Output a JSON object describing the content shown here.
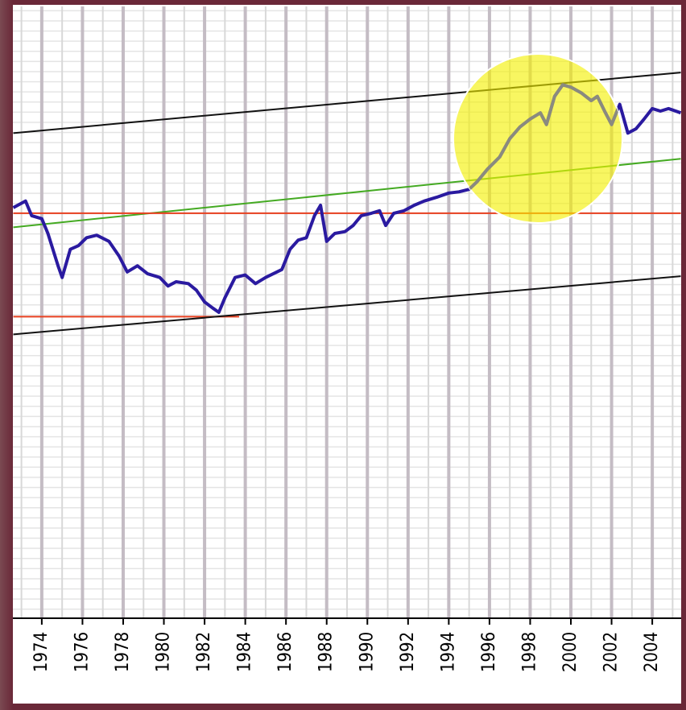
{
  "chart_data": {
    "type": "line",
    "x": [
      1972.6,
      1973.2,
      1973.5,
      1974,
      1974.3,
      1974.8,
      1975,
      1975.4,
      1975.8,
      1976.2,
      1976.7,
      1977.3,
      1977.8,
      1978.2,
      1978.7,
      1979.2,
      1979.8,
      1980.2,
      1980.6,
      1981.2,
      1981.6,
      1982,
      1982.4,
      1982.7,
      1983,
      1983.5,
      1984,
      1984.5,
      1985,
      1985.8,
      1986.2,
      1986.6,
      1987,
      1987.4,
      1987.7,
      1988,
      1988.4,
      1988.9,
      1989.3,
      1989.7,
      1990.2,
      1990.6,
      1990.9,
      1991.3,
      1991.8,
      1992.3,
      1992.8,
      1993.4,
      1994,
      1994.5,
      1995,
      1995.4,
      1995.9,
      1996.5,
      1997,
      1997.5,
      1998,
      1998.5,
      1998.8,
      1999.2,
      1999.6,
      2000,
      2000.5,
      2001,
      2001.3,
      2001.7,
      2002,
      2002.4,
      2002.8,
      2003.2,
      2003.6,
      2004,
      2004.4,
      2004.8,
      2005.4
    ],
    "series": [
      {
        "color": "#2a1aa0",
        "values": [
          67.1,
          68.2,
          65.8,
          65.3,
          62.9,
          57.6,
          55.7,
          60.3,
          60.9,
          62.2,
          62.6,
          61.6,
          59.2,
          56.6,
          57.6,
          56.3,
          55.7,
          54.3,
          55.0,
          54.7,
          53.6,
          51.7,
          50.7,
          50.0,
          52.4,
          55.7,
          56.1,
          54.7,
          55.7,
          57.0,
          60.3,
          61.8,
          62.2,
          65.8,
          67.5,
          61.6,
          62.9,
          63.2,
          64.2,
          65.8,
          66.2,
          66.6,
          64.2,
          66.2,
          66.6,
          67.5,
          68.2,
          68.8,
          69.5,
          69.7,
          70.1,
          71.4,
          73.4,
          75.4,
          78.4,
          80.3,
          81.6,
          82.6,
          80.7,
          85.3,
          87.2,
          86.8,
          85.9,
          84.6,
          85.3,
          82.6,
          80.7,
          84.0,
          79.3,
          80.0,
          81.6,
          83.3,
          82.9,
          83.3,
          82.6
        ]
      }
    ],
    "lines": [
      {
        "color": "#111111",
        "x": [
          1972.6,
          2005.4
        ],
        "y": [
          79.3,
          89.2
        ]
      },
      {
        "color": "#44aa22",
        "x": [
          1972.6,
          2005.4
        ],
        "y": [
          63.9,
          75.1
        ]
      },
      {
        "color": "#e84020",
        "x": [
          1972.6,
          2005.4
        ],
        "y": [
          66.2,
          66.2
        ]
      },
      {
        "color": "#e84020",
        "x": [
          1972.6,
          1983.7
        ],
        "y": [
          49.3,
          49.3
        ]
      },
      {
        "color": "#111111",
        "x": [
          1972.6,
          2005.4
        ],
        "y": [
          46.4,
          55.9
        ]
      }
    ],
    "xlim": [
      1972.58,
      2005.42
    ],
    "xticks": [
      1974,
      1976,
      1978,
      1980,
      1982,
      1984,
      1986,
      1988,
      1990,
      1992,
      1994,
      1996,
      1998,
      2000,
      2002,
      2004
    ],
    "ylim": [
      0,
      100
    ],
    "grid": true
  }
}
